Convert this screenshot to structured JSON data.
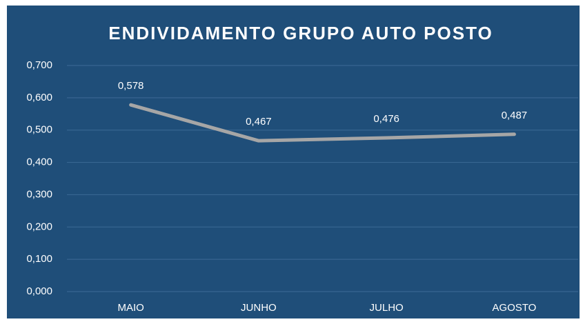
{
  "chart_data": {
    "type": "line",
    "title": "ENDIVIDAMENTO GRUPO AUTO POSTO",
    "categories": [
      "MAIO",
      "JUNHO",
      "JULHO",
      "AGOSTO"
    ],
    "series": [
      {
        "name": "ENDIVIDAMENTO",
        "color": "#a6a6a6",
        "values": [
          0.578,
          0.467,
          0.476,
          0.487
        ],
        "value_labels": [
          "0,578",
          "0,467",
          "0,476",
          "0,487"
        ]
      }
    ],
    "ylim": [
      0,
      0.7
    ],
    "yticks": [
      {
        "value": 0,
        "label": "0,000"
      },
      {
        "value": 0.1,
        "label": "0,100"
      },
      {
        "value": 0.2,
        "label": "0,200"
      },
      {
        "value": 0.3,
        "label": "0,300"
      },
      {
        "value": 0.4,
        "label": "0,400"
      },
      {
        "value": 0.5,
        "label": "0,500"
      },
      {
        "value": 0.6,
        "label": "0,600"
      },
      {
        "value": 0.7,
        "label": "0,700"
      }
    ],
    "grid": true
  }
}
